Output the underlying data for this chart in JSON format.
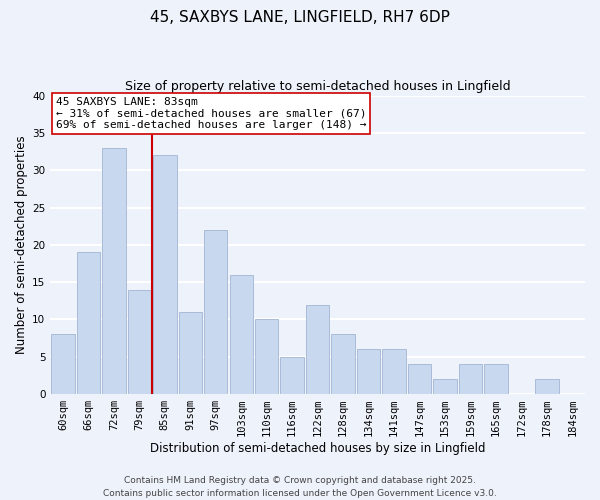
{
  "title": "45, SAXBYS LANE, LINGFIELD, RH7 6DP",
  "subtitle": "Size of property relative to semi-detached houses in Lingfield",
  "xlabel": "Distribution of semi-detached houses by size in Lingfield",
  "ylabel": "Number of semi-detached properties",
  "categories": [
    "60sqm",
    "66sqm",
    "72sqm",
    "79sqm",
    "85sqm",
    "91sqm",
    "97sqm",
    "103sqm",
    "110sqm",
    "116sqm",
    "122sqm",
    "128sqm",
    "134sqm",
    "141sqm",
    "147sqm",
    "153sqm",
    "159sqm",
    "165sqm",
    "172sqm",
    "178sqm",
    "184sqm"
  ],
  "values": [
    8,
    19,
    33,
    14,
    32,
    11,
    22,
    16,
    10,
    5,
    12,
    8,
    6,
    6,
    4,
    2,
    4,
    4,
    0,
    2,
    0
  ],
  "bar_color": "#c8d8ee",
  "bar_edge_color": "#aabbd8",
  "background_color": "#eef2fb",
  "grid_color": "#ffffff",
  "ref_line_x": 3.5,
  "ref_line_color": "#cc0000",
  "annotation_title": "45 SAXBYS LANE: 83sqm",
  "annotation_line1": "← 31% of semi-detached houses are smaller (67)",
  "annotation_line2": "69% of semi-detached houses are larger (148) →",
  "annotation_box_color": "#ffffff",
  "annotation_box_edge_color": "#cc0000",
  "ylim": [
    0,
    40
  ],
  "yticks": [
    0,
    5,
    10,
    15,
    20,
    25,
    30,
    35,
    40
  ],
  "footer_line1": "Contains HM Land Registry data © Crown copyright and database right 2025.",
  "footer_line2": "Contains public sector information licensed under the Open Government Licence v3.0.",
  "title_fontsize": 11,
  "subtitle_fontsize": 9,
  "axis_label_fontsize": 8.5,
  "tick_fontsize": 7.5,
  "annotation_fontsize": 8,
  "footer_fontsize": 6.5
}
